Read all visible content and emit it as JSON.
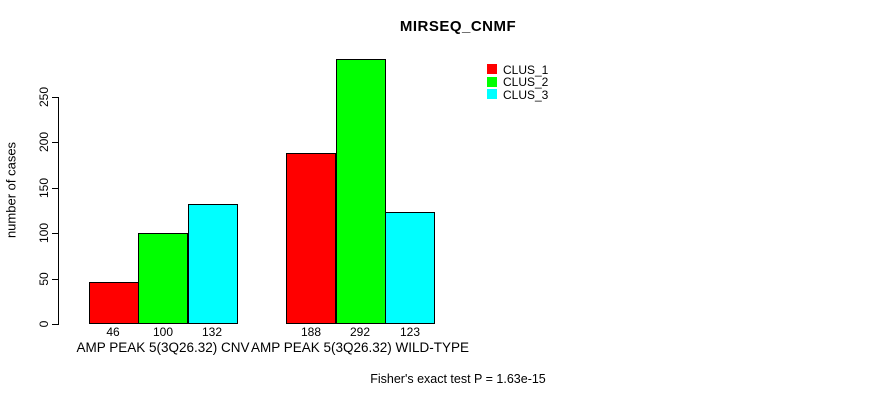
{
  "chart_data": {
    "type": "bar",
    "title": "MIRSEQ_CNMF",
    "ylabel": "number of cases",
    "xlabel": "",
    "categories": [
      "AMP PEAK 5(3Q26.32) CNV",
      "AMP PEAK 5(3Q26.32) WILD-TYPE"
    ],
    "series": [
      {
        "name": "CLUS_1",
        "color": "#ff0000",
        "values": [
          46,
          188
        ]
      },
      {
        "name": "CLUS_2",
        "color": "#00ff00",
        "values": [
          100,
          292
        ]
      },
      {
        "name": "CLUS_3",
        "color": "#00ffff",
        "values": [
          132,
          123
        ]
      }
    ],
    "bar_value_labels": [
      [
        46,
        100,
        132
      ],
      [
        188,
        292,
        123
      ]
    ],
    "yticks": [
      0,
      50,
      100,
      150,
      200,
      250
    ],
    "ylim": [
      0,
      250
    ],
    "grid": false,
    "legend_position": "top-right",
    "annotation": "Fisher's exact test P = 1.63e-15"
  }
}
